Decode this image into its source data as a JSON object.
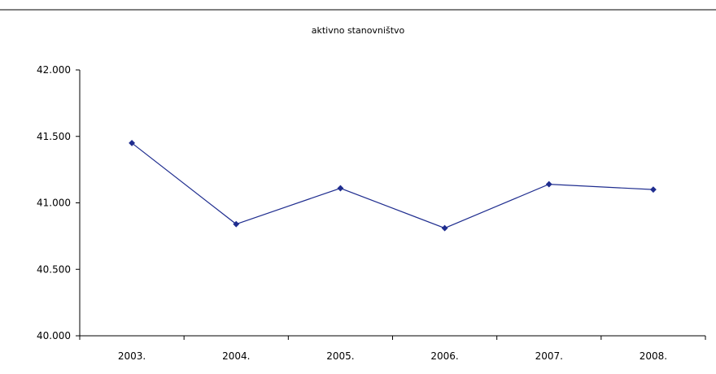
{
  "chart_data": {
    "type": "line",
    "title": "aktivno stanovništvo",
    "xlabel": "",
    "ylabel": "",
    "categories": [
      "2003.",
      "2004.",
      "2005.",
      "2006.",
      "2007.",
      "2008."
    ],
    "series": [
      {
        "values": [
          41450,
          40840,
          41110,
          40810,
          41140,
          41100
        ]
      }
    ],
    "ylim": [
      40000,
      42000
    ],
    "yticks": [
      40000,
      40500,
      41000,
      41500,
      42000
    ],
    "ytick_labels": [
      "40.000",
      "40.500",
      "41.000",
      "41.500",
      "42.000"
    ],
    "grid": false,
    "legend": "none",
    "line_color": "#1f2d8f",
    "marker_color": "#1f2d8f",
    "marker": "diamond"
  }
}
